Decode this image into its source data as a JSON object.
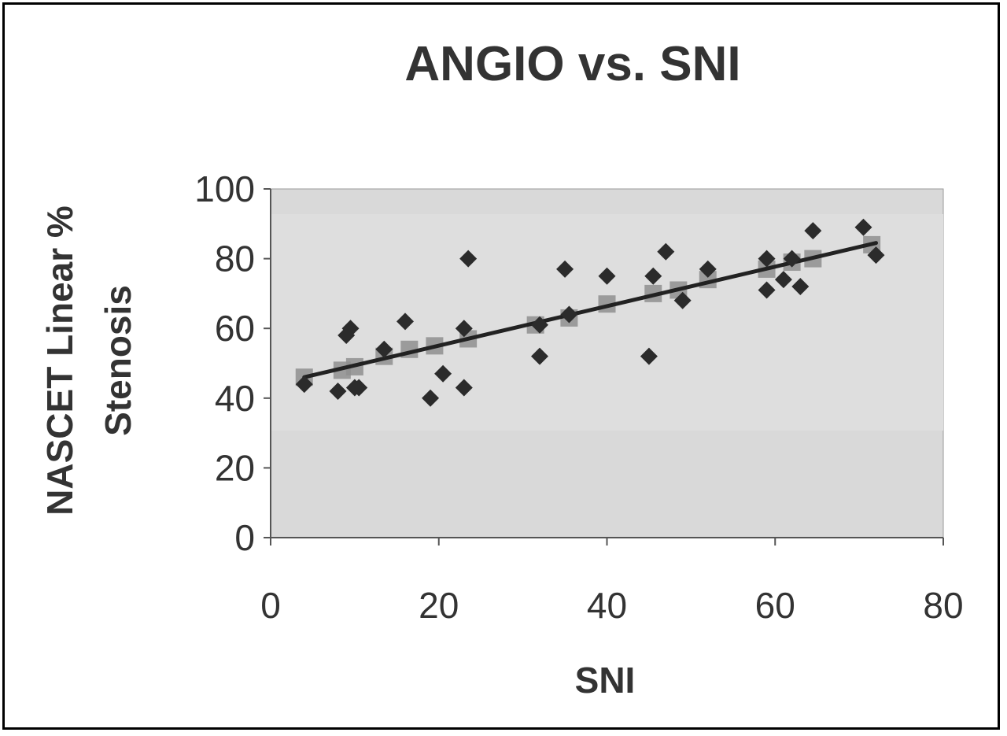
{
  "chart_data": {
    "type": "scatter",
    "title": "ANGIO vs. SNI",
    "xlabel": "SNI",
    "ylabel_lines": [
      "NASCET Linear %",
      "Stenosis"
    ],
    "xlim": [
      0,
      80
    ],
    "ylim": [
      0,
      100
    ],
    "x_ticks": [
      "0",
      "20",
      "40",
      "60",
      "80"
    ],
    "y_ticks": [
      "0",
      "20",
      "40",
      "60",
      "80",
      "100"
    ],
    "grid": false,
    "legend": "none",
    "series": [
      {
        "marker": "diamond",
        "color": "#2b2b2b",
        "points": [
          [
            4,
            44
          ],
          [
            8,
            42
          ],
          [
            9,
            58
          ],
          [
            9.5,
            60
          ],
          [
            10,
            43
          ],
          [
            10.5,
            43
          ],
          [
            13.5,
            54
          ],
          [
            16,
            62
          ],
          [
            19,
            40
          ],
          [
            20.5,
            47
          ],
          [
            23,
            43
          ],
          [
            23,
            60
          ],
          [
            23.5,
            80
          ],
          [
            32,
            52
          ],
          [
            32,
            61
          ],
          [
            35,
            77
          ],
          [
            35.5,
            64
          ],
          [
            40,
            75
          ],
          [
            45,
            52
          ],
          [
            45.5,
            75
          ],
          [
            47,
            82
          ],
          [
            49,
            68
          ],
          [
            52,
            77
          ],
          [
            59,
            71
          ],
          [
            59,
            80
          ],
          [
            61,
            74
          ],
          [
            62,
            80
          ],
          [
            63,
            72
          ],
          [
            64.5,
            88
          ],
          [
            70.5,
            89
          ],
          [
            72,
            81
          ]
        ]
      },
      {
        "marker": "square",
        "color": "#8f8f8f",
        "points": [
          [
            4,
            46
          ],
          [
            8.5,
            48
          ],
          [
            10,
            49
          ],
          [
            13.5,
            52
          ],
          [
            16.5,
            54
          ],
          [
            19.5,
            55
          ],
          [
            23.5,
            57
          ],
          [
            31.5,
            61
          ],
          [
            35.5,
            63
          ],
          [
            40,
            67
          ],
          [
            45.5,
            70
          ],
          [
            48.5,
            71
          ],
          [
            52,
            74
          ],
          [
            59,
            77
          ],
          [
            62,
            79
          ],
          [
            64.5,
            80
          ],
          [
            71.5,
            84
          ]
        ]
      }
    ],
    "trendline": {
      "x": [
        4,
        72
      ],
      "y": [
        46,
        84.5
      ],
      "color": "#222222"
    }
  }
}
